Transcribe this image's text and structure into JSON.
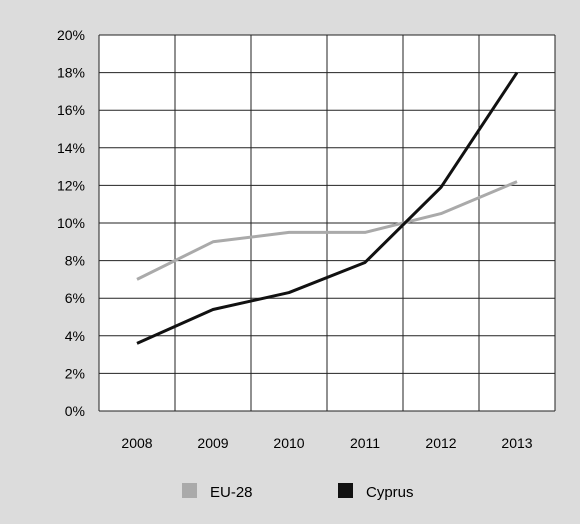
{
  "chart_data": {
    "type": "line",
    "title": "",
    "xlabel": "",
    "ylabel": "",
    "x": [
      "2008",
      "2009",
      "2010",
      "2011",
      "2012",
      "2013"
    ],
    "ylim": [
      0,
      20
    ],
    "y_ticks": [
      "0%",
      "2%",
      "4%",
      "6%",
      "8%",
      "10%",
      "12%",
      "14%",
      "16%",
      "18%",
      "20%"
    ],
    "grid": true,
    "legend_position": "bottom",
    "series": [
      {
        "name": "EU-28",
        "values": [
          7.0,
          9.0,
          9.5,
          9.5,
          10.5,
          12.2
        ],
        "color": "#aaaaaa"
      },
      {
        "name": "Cyprus",
        "values": [
          3.6,
          5.4,
          6.3,
          7.9,
          11.9,
          18.0
        ],
        "color": "#111111"
      }
    ],
    "colors": {
      "background": "#dcdcdc",
      "plot_background": "#ffffff",
      "grid": "#222222"
    }
  }
}
